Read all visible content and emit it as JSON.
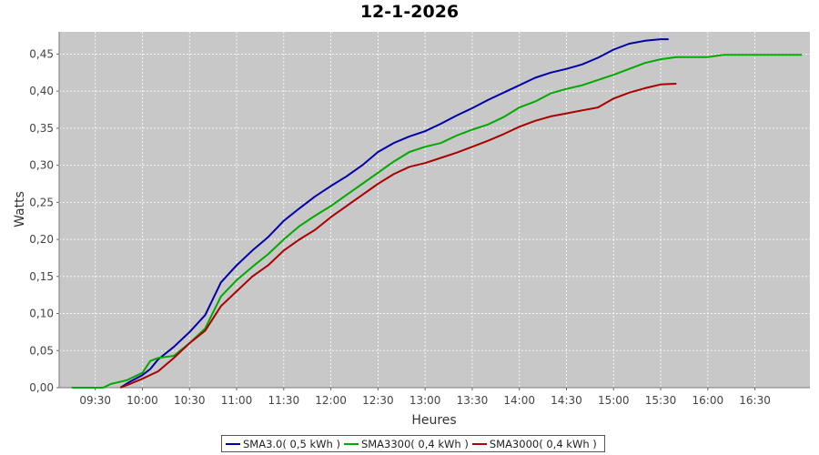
{
  "chart_data": {
    "type": "line",
    "title": "12-1-2026",
    "xlabel": "Heures",
    "ylabel": "Watts",
    "ylim": [
      0,
      0.48
    ],
    "xlim": [
      "09:07",
      "17:05"
    ],
    "y_ticks": [
      "0,00",
      "0,05",
      "0,10",
      "0,15",
      "0,20",
      "0,25",
      "0,30",
      "0,35",
      "0,40",
      "0,45"
    ],
    "x_ticks": [
      "09:30",
      "10:00",
      "10:30",
      "11:00",
      "11:30",
      "12:00",
      "12:30",
      "13:00",
      "13:30",
      "14:00",
      "14:30",
      "15:00",
      "15:30",
      "16:00",
      "16:30"
    ],
    "grid": true,
    "legend_position": "bottom",
    "series": [
      {
        "name": "SMA3.0( 0,5 kWh )",
        "color": "#0000aa",
        "points": [
          [
            "09:46",
            0.0
          ],
          [
            "09:52",
            0.008
          ],
          [
            "10:00",
            0.017
          ],
          [
            "10:05",
            0.025
          ],
          [
            "10:10",
            0.038
          ],
          [
            "10:20",
            0.055
          ],
          [
            "10:30",
            0.075
          ],
          [
            "10:40",
            0.098
          ],
          [
            "10:50",
            0.142
          ],
          [
            "11:00",
            0.165
          ],
          [
            "11:10",
            0.185
          ],
          [
            "11:20",
            0.203
          ],
          [
            "11:30",
            0.225
          ],
          [
            "11:40",
            0.242
          ],
          [
            "11:50",
            0.258
          ],
          [
            "12:00",
            0.272
          ],
          [
            "12:10",
            0.285
          ],
          [
            "12:20",
            0.3
          ],
          [
            "12:30",
            0.318
          ],
          [
            "12:40",
            0.33
          ],
          [
            "12:50",
            0.339
          ],
          [
            "13:00",
            0.346
          ],
          [
            "13:10",
            0.356
          ],
          [
            "13:20",
            0.367
          ],
          [
            "13:30",
            0.377
          ],
          [
            "13:40",
            0.388
          ],
          [
            "13:50",
            0.398
          ],
          [
            "14:00",
            0.408
          ],
          [
            "14:10",
            0.418
          ],
          [
            "14:20",
            0.425
          ],
          [
            "14:30",
            0.43
          ],
          [
            "14:40",
            0.436
          ],
          [
            "14:50",
            0.445
          ],
          [
            "15:00",
            0.456
          ],
          [
            "15:10",
            0.464
          ],
          [
            "15:20",
            0.468
          ],
          [
            "15:30",
            0.47
          ],
          [
            "15:35",
            0.47
          ]
        ]
      },
      {
        "name": "SMA3300( 0,4 kWh )",
        "color": "#00aa00",
        "points": [
          [
            "09:15",
            0.0
          ],
          [
            "09:35",
            0.0
          ],
          [
            "09:40",
            0.005
          ],
          [
            "09:50",
            0.01
          ],
          [
            "10:00",
            0.02
          ],
          [
            "10:05",
            0.036
          ],
          [
            "10:10",
            0.04
          ],
          [
            "10:20",
            0.043
          ],
          [
            "10:30",
            0.06
          ],
          [
            "10:40",
            0.08
          ],
          [
            "10:50",
            0.123
          ],
          [
            "11:00",
            0.145
          ],
          [
            "11:10",
            0.163
          ],
          [
            "11:20",
            0.18
          ],
          [
            "11:30",
            0.2
          ],
          [
            "11:40",
            0.218
          ],
          [
            "11:50",
            0.232
          ],
          [
            "12:00",
            0.245
          ],
          [
            "12:10",
            0.26
          ],
          [
            "12:20",
            0.275
          ],
          [
            "12:30",
            0.29
          ],
          [
            "12:40",
            0.305
          ],
          [
            "12:50",
            0.318
          ],
          [
            "13:00",
            0.325
          ],
          [
            "13:10",
            0.33
          ],
          [
            "13:20",
            0.34
          ],
          [
            "13:30",
            0.348
          ],
          [
            "13:40",
            0.355
          ],
          [
            "13:50",
            0.365
          ],
          [
            "14:00",
            0.378
          ],
          [
            "14:10",
            0.386
          ],
          [
            "14:20",
            0.397
          ],
          [
            "14:30",
            0.403
          ],
          [
            "14:40",
            0.408
          ],
          [
            "14:50",
            0.415
          ],
          [
            "15:00",
            0.422
          ],
          [
            "15:10",
            0.43
          ],
          [
            "15:20",
            0.438
          ],
          [
            "15:30",
            0.443
          ],
          [
            "15:40",
            0.446
          ],
          [
            "16:00",
            0.446
          ],
          [
            "16:10",
            0.449
          ],
          [
            "16:30",
            0.449
          ],
          [
            "17:00",
            0.449
          ]
        ]
      },
      {
        "name": "SMA3000( 0,4 kWh )",
        "color": "#aa0000",
        "points": [
          [
            "09:46",
            0.0
          ],
          [
            "09:52",
            0.005
          ],
          [
            "10:00",
            0.012
          ],
          [
            "10:10",
            0.022
          ],
          [
            "10:20",
            0.04
          ],
          [
            "10:30",
            0.06
          ],
          [
            "10:40",
            0.077
          ],
          [
            "10:50",
            0.11
          ],
          [
            "11:00",
            0.13
          ],
          [
            "11:10",
            0.15
          ],
          [
            "11:20",
            0.165
          ],
          [
            "11:30",
            0.185
          ],
          [
            "11:40",
            0.2
          ],
          [
            "11:50",
            0.213
          ],
          [
            "12:00",
            0.23
          ],
          [
            "12:10",
            0.245
          ],
          [
            "12:20",
            0.26
          ],
          [
            "12:30",
            0.275
          ],
          [
            "12:40",
            0.288
          ],
          [
            "12:50",
            0.298
          ],
          [
            "13:00",
            0.303
          ],
          [
            "13:10",
            0.31
          ],
          [
            "13:20",
            0.317
          ],
          [
            "13:30",
            0.325
          ],
          [
            "13:40",
            0.333
          ],
          [
            "13:50",
            0.342
          ],
          [
            "14:00",
            0.352
          ],
          [
            "14:10",
            0.36
          ],
          [
            "14:20",
            0.366
          ],
          [
            "14:30",
            0.37
          ],
          [
            "14:40",
            0.374
          ],
          [
            "14:50",
            0.378
          ],
          [
            "15:00",
            0.39
          ],
          [
            "15:10",
            0.398
          ],
          [
            "15:20",
            0.404
          ],
          [
            "15:30",
            0.409
          ],
          [
            "15:40",
            0.41
          ]
        ]
      }
    ]
  }
}
